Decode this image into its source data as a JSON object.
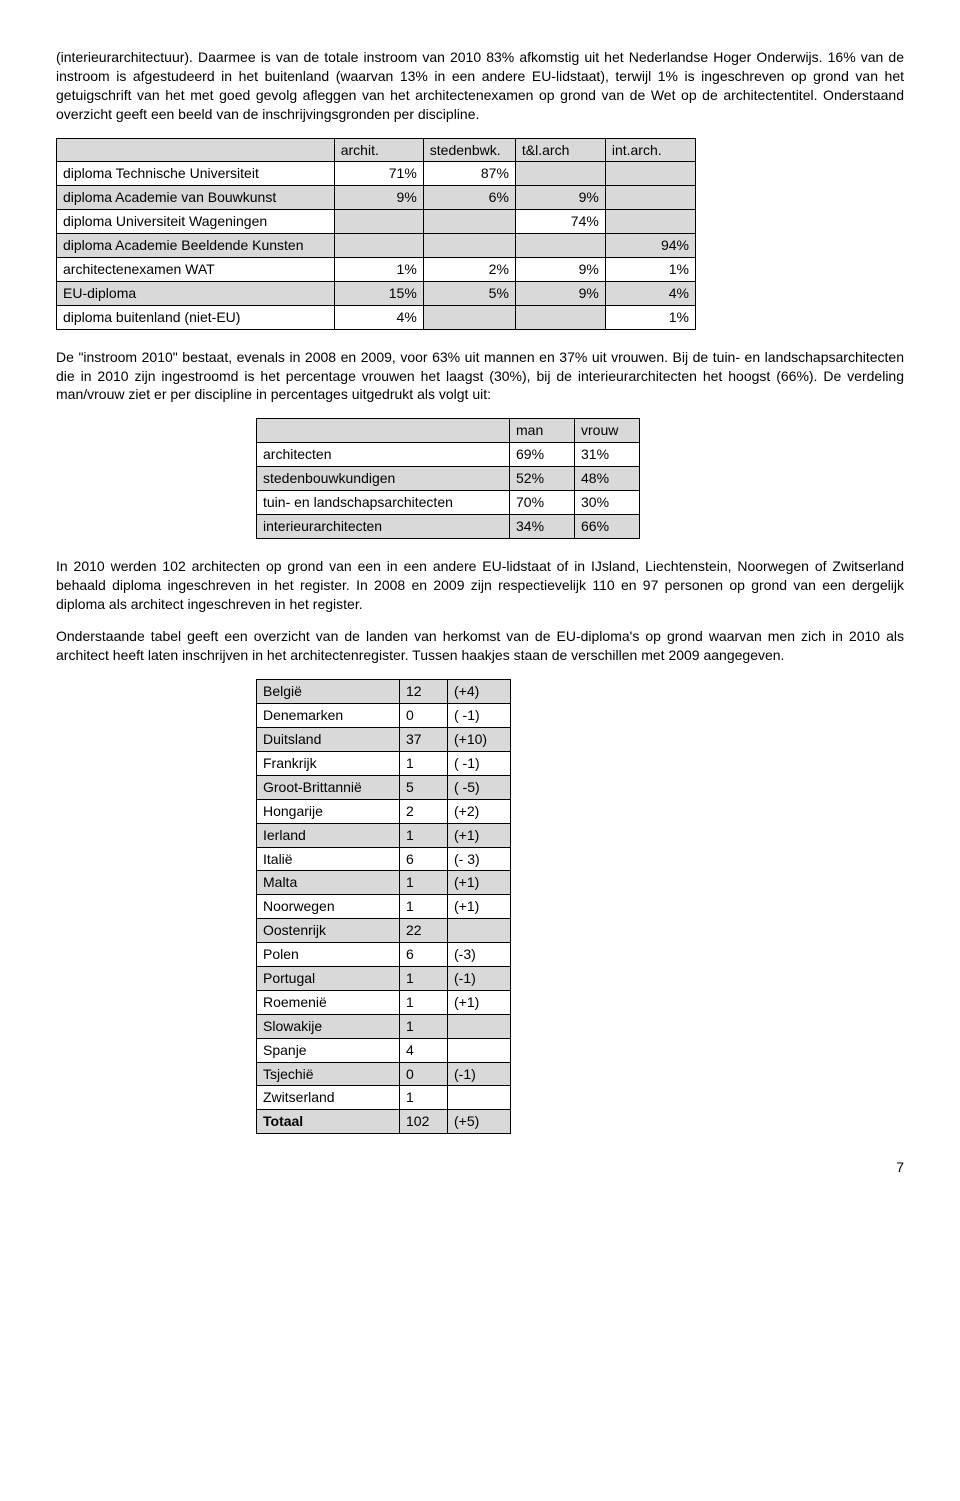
{
  "para1": "(interieurarchitectuur). Daarmee is van de totale instroom van 2010 83% afkomstig uit het Nederlandse Hoger Onderwijs. 16% van de instroom is afgestudeerd in het buitenland (waarvan 13% in een andere EU-lidstaat), terwijl 1% is ingeschreven op grond van het getuigschrift van het met goed gevolg afleggen van het architectenexamen op grond van de Wet op de architectentitel. Onderstaand overzicht geeft een beeld van de inschrijvingsgronden per discipline.",
  "t1": {
    "h1": "archit.",
    "h2": "stedenbwk.",
    "h3": "t&l.arch",
    "h4": "int.arch.",
    "r1l": "diploma Technische Universiteit",
    "r1c1": "71%",
    "r1c2": "87%",
    "r1c3": "",
    "r1c4": "",
    "r2l": "diploma Academie van Bouwkunst",
    "r2c1": "9%",
    "r2c2": "6%",
    "r2c3": "9%",
    "r2c4": "",
    "r3l": "diploma Universiteit Wageningen",
    "r3c1": "",
    "r3c2": "",
    "r3c3": "74%",
    "r3c4": "",
    "r4l": "diploma Academie Beeldende Kunsten",
    "r4c1": "",
    "r4c2": "",
    "r4c3": "",
    "r4c4": "94%",
    "r5l": "architectenexamen WAT",
    "r5c1": "1%",
    "r5c2": "2%",
    "r5c3": "9%",
    "r5c4": "1%",
    "r6l": "EU-diploma",
    "r6c1": "15%",
    "r6c2": "5%",
    "r6c3": "9%",
    "r6c4": "4%",
    "r7l": "diploma buitenland (niet-EU)",
    "r7c1": "4%",
    "r7c2": "",
    "r7c3": "",
    "r7c4": "1%"
  },
  "para2": "De \"instroom 2010\" bestaat, evenals in 2008 en 2009, voor 63% uit mannen en 37% uit vrouwen. Bij de tuin- en landschapsarchitecten die in 2010 zijn ingestroomd is het percentage vrouwen het laagst (30%), bij de interieurarchitecten het hoogst (66%). De verdeling man/vrouw ziet er per discipline in percentages uitgedrukt als volgt uit:",
  "t2": {
    "h1": "man",
    "h2": "vrouw",
    "r1l": "architecten",
    "r1c1": "69%",
    "r1c2": "31%",
    "r2l": "stedenbouwkundigen",
    "r2c1": "52%",
    "r2c2": "48%",
    "r3l": "tuin- en landschapsarchitecten",
    "r3c1": "70%",
    "r3c2": "30%",
    "r4l": "interieurarchitecten",
    "r4c1": "34%",
    "r4c2": "66%"
  },
  "para3": "In 2010 werden 102 architecten op grond van een in een andere EU-lidstaat of in IJsland, Liechtenstein, Noorwegen of Zwitserland behaald diploma ingeschreven in het register. In 2008 en 2009 zijn respectievelijk 110 en 97 personen op grond van een dergelijk diploma als architect ingeschreven in het register.",
  "para4": "Onderstaande tabel geeft een overzicht van de landen van herkomst van de EU-diploma's op grond waarvan men zich in 2010 als architect heeft laten inschrijven in het architectenregister. Tussen haakjes staan de verschillen met 2009 aangegeven.",
  "t3": {
    "r1l": "België",
    "r1c1": "12",
    "r1c2": "(+4)",
    "r2l": "Denemarken",
    "r2c1": "0",
    "r2c2": "( -1)",
    "r3l": "Duitsland",
    "r3c1": "37",
    "r3c2": "(+10)",
    "r4l": "Frankrijk",
    "r4c1": "1",
    "r4c2": "( -1)",
    "r5l": "Groot-Brittannië",
    "r5c1": "5",
    "r5c2": "( -5)",
    "r6l": "Hongarije",
    "r6c1": "2",
    "r6c2": "(+2)",
    "r7l": "Ierland",
    "r7c1": "1",
    "r7c2": "(+1)",
    "r8l": "Italië",
    "r8c1": "6",
    "r8c2": "(- 3)",
    "r9l": "Malta",
    "r9c1": "1",
    "r9c2": "(+1)",
    "r10l": "Noorwegen",
    "r10c1": "1",
    "r10c2": "(+1)",
    "r11l": "Oostenrijk",
    "r11c1": "22",
    "r11c2": "",
    "r12l": "Polen",
    "r12c1": "6",
    "r12c2": "(-3)",
    "r13l": "Portugal",
    "r13c1": "1",
    "r13c2": "(-1)",
    "r14l": "Roemenië",
    "r14c1": "1",
    "r14c2": "(+1)",
    "r15l": "Slowakije",
    "r15c1": "1",
    "r15c2": "",
    "r16l": "Spanje",
    "r16c1": "4",
    "r16c2": "",
    "r17l": "Tsjechië",
    "r17c1": "0",
    "r17c2": "(-1)",
    "r18l": "Zwitserland",
    "r18c1": "1",
    "r18c2": "",
    "r19l": "Totaal",
    "r19c1": "102",
    "r19c2": "(+5)"
  },
  "pagenum": "7"
}
